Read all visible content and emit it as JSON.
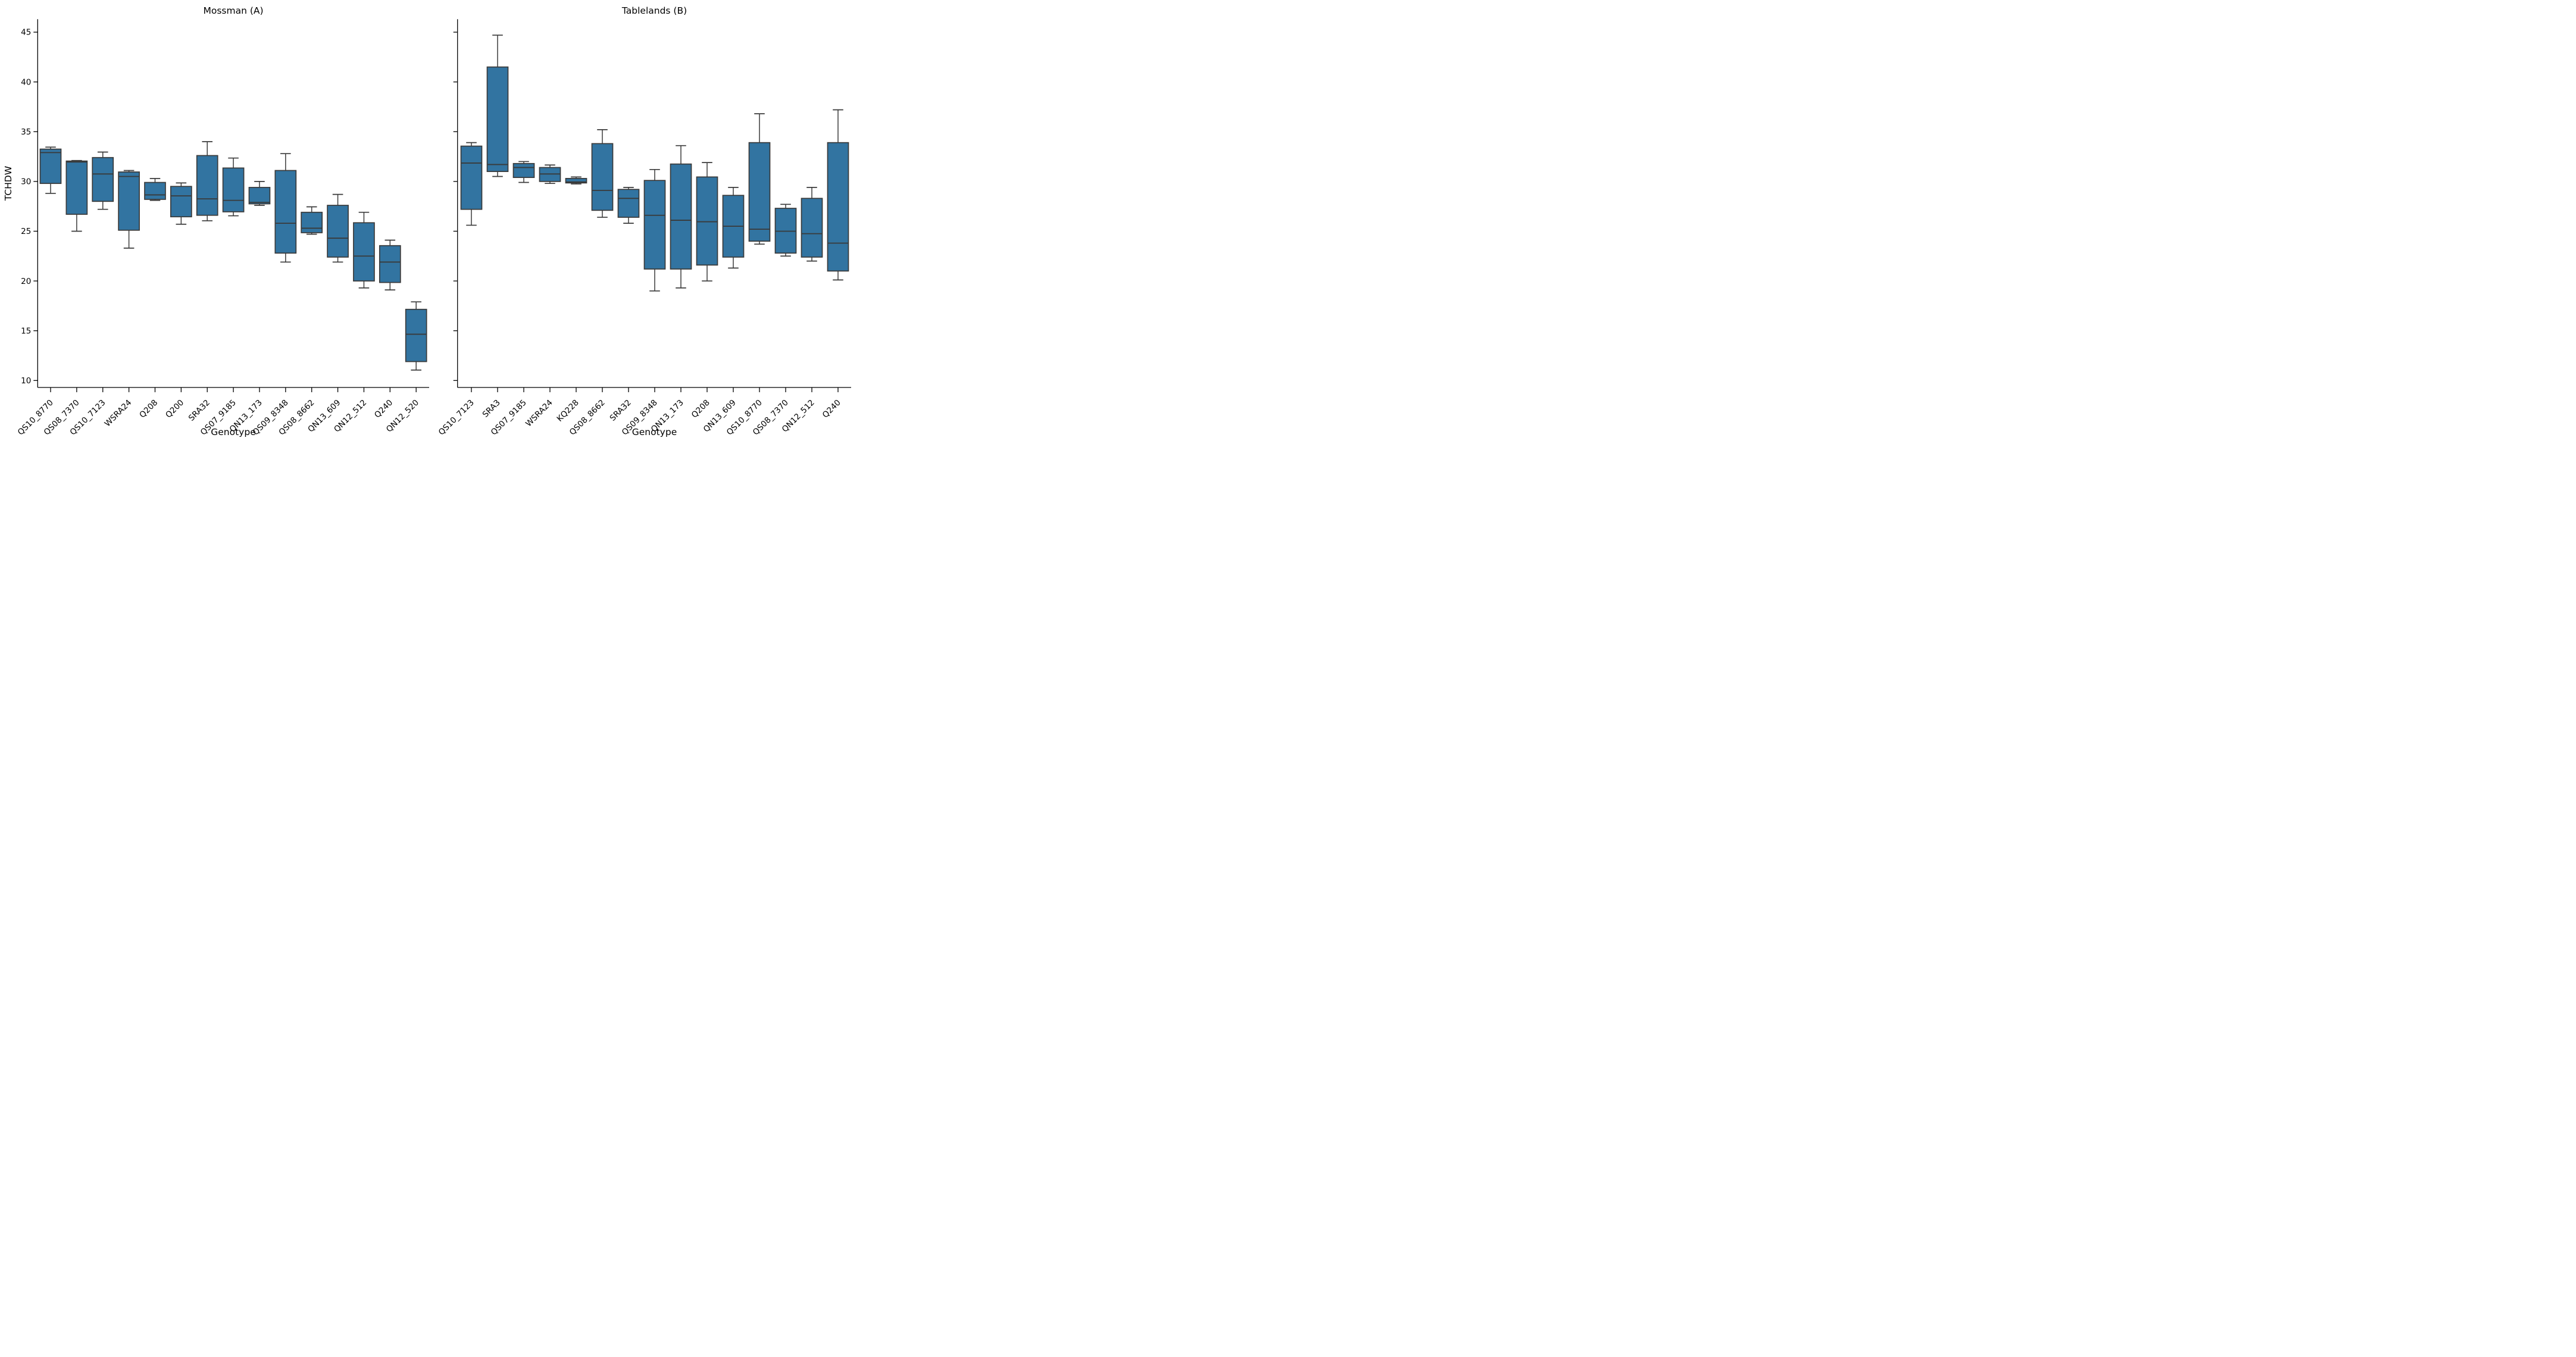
{
  "figure": {
    "background": "#ffffff",
    "box_fill_color": "#3274a1",
    "box_edge_color": "#3a3a3a",
    "axis_color": "#000000",
    "text_color": "#000000"
  },
  "chart_data": [
    {
      "type": "box",
      "title": "Mossman (A)",
      "xlabel": "Genotype",
      "ylabel": "TCHDW",
      "ylim": [
        9.3,
        46.3
      ],
      "yticks": [
        10,
        15,
        20,
        25,
        30,
        35,
        40,
        45
      ],
      "show_ytick_labels": true,
      "legend": "none",
      "grid": false,
      "categories": [
        "QS10_8770",
        "QS08_7370",
        "QS10_7123",
        "WSRA24",
        "Q208",
        "Q200",
        "SRA32",
        "QS07_9185",
        "QN13_173",
        "QS09_8348",
        "QS08_8662",
        "QN13_609",
        "QN12_512",
        "Q240",
        "QN12_520"
      ],
      "boxes": [
        {
          "category": "QS10_8770",
          "whislo": 28.8,
          "q1": 29.8,
          "med": 32.9,
          "q3": 33.25,
          "whishi": 33.45
        },
        {
          "category": "QS08_7370",
          "whislo": 25.0,
          "q1": 26.7,
          "med": 31.95,
          "q3": 32.05,
          "whishi": 32.1
        },
        {
          "category": "QS10_7123",
          "whislo": 27.2,
          "q1": 28.0,
          "med": 30.75,
          "q3": 32.4,
          "whishi": 32.95
        },
        {
          "category": "WSRA24",
          "whislo": 23.3,
          "q1": 25.1,
          "med": 30.5,
          "q3": 30.95,
          "whishi": 31.1
        },
        {
          "category": "Q208",
          "whislo": 28.1,
          "q1": 28.2,
          "med": 28.65,
          "q3": 29.9,
          "whishi": 30.3
        },
        {
          "category": "Q200",
          "whislo": 25.7,
          "q1": 26.45,
          "med": 28.55,
          "q3": 29.5,
          "whishi": 29.85
        },
        {
          "category": "SRA32",
          "whislo": 26.05,
          "q1": 26.6,
          "med": 28.25,
          "q3": 32.6,
          "whishi": 34.0
        },
        {
          "category": "QS07_9185",
          "whislo": 26.55,
          "q1": 26.95,
          "med": 28.1,
          "q3": 31.35,
          "whishi": 32.35
        },
        {
          "category": "QN13_173",
          "whislo": 27.6,
          "q1": 27.75,
          "med": 27.9,
          "q3": 29.4,
          "whishi": 30.0
        },
        {
          "category": "QS09_8348",
          "whislo": 21.9,
          "q1": 22.8,
          "med": 25.8,
          "q3": 31.1,
          "whishi": 32.8
        },
        {
          "category": "QS08_8662",
          "whislo": 24.7,
          "q1": 24.85,
          "med": 25.3,
          "q3": 26.9,
          "whishi": 27.45
        },
        {
          "category": "QN13_609",
          "whislo": 21.9,
          "q1": 22.4,
          "med": 24.3,
          "q3": 27.6,
          "whishi": 28.7
        },
        {
          "category": "QN12_512",
          "whislo": 19.3,
          "q1": 20.0,
          "med": 22.5,
          "q3": 25.85,
          "whishi": 26.9
        },
        {
          "category": "Q240",
          "whislo": 19.1,
          "q1": 19.85,
          "med": 21.9,
          "q3": 23.55,
          "whishi": 24.1
        },
        {
          "category": "QN12_520",
          "whislo": 11.05,
          "q1": 11.9,
          "med": 14.65,
          "q3": 17.15,
          "whishi": 17.9
        }
      ]
    },
    {
      "type": "box",
      "title": "Tablelands (B)",
      "xlabel": "Genotype",
      "ylabel": "",
      "ylim": [
        9.3,
        46.3
      ],
      "yticks": [
        10,
        15,
        20,
        25,
        30,
        35,
        40,
        45
      ],
      "show_ytick_labels": false,
      "legend": "none",
      "grid": false,
      "categories": [
        "QS10_7123",
        "SRA3",
        "QS07_9185",
        "WSRA24",
        "KQ228",
        "QS08_8662",
        "SRA32",
        "QS09_8348",
        "QN13_173",
        "Q208",
        "QN13_609",
        "QS10_8770",
        "QS08_7370",
        "QN12_512",
        "Q240"
      ],
      "boxes": [
        {
          "category": "QS10_7123",
          "whislo": 25.6,
          "q1": 27.2,
          "med": 31.85,
          "q3": 33.55,
          "whishi": 33.9
        },
        {
          "category": "SRA3",
          "whislo": 30.5,
          "q1": 31.0,
          "med": 31.7,
          "q3": 41.5,
          "whishi": 44.7
        },
        {
          "category": "QS07_9185",
          "whislo": 29.9,
          "q1": 30.4,
          "med": 31.4,
          "q3": 31.8,
          "whishi": 32.0
        },
        {
          "category": "WSRA24",
          "whislo": 29.8,
          "q1": 30.0,
          "med": 30.75,
          "q3": 31.4,
          "whishi": 31.65
        },
        {
          "category": "KQ228",
          "whislo": 29.75,
          "q1": 29.85,
          "med": 29.95,
          "q3": 30.3,
          "whishi": 30.45
        },
        {
          "category": "QS08_8662",
          "whislo": 26.4,
          "q1": 27.1,
          "med": 29.1,
          "q3": 33.8,
          "whishi": 35.2
        },
        {
          "category": "SRA32",
          "whislo": 25.8,
          "q1": 26.4,
          "med": 28.3,
          "q3": 29.2,
          "whishi": 29.4
        },
        {
          "category": "QS09_8348",
          "whislo": 19.0,
          "q1": 21.2,
          "med": 26.6,
          "q3": 30.1,
          "whishi": 31.2
        },
        {
          "category": "QN13_173",
          "whislo": 19.3,
          "q1": 21.2,
          "med": 26.1,
          "q3": 31.75,
          "whishi": 33.6
        },
        {
          "category": "Q208",
          "whislo": 20.0,
          "q1": 21.6,
          "med": 25.95,
          "q3": 30.45,
          "whishi": 31.9
        },
        {
          "category": "QN13_609",
          "whislo": 21.3,
          "q1": 22.4,
          "med": 25.5,
          "q3": 28.6,
          "whishi": 29.4
        },
        {
          "category": "QS10_8770",
          "whislo": 23.7,
          "q1": 24.0,
          "med": 25.2,
          "q3": 33.9,
          "whishi": 36.8
        },
        {
          "category": "QS08_7370",
          "whislo": 22.5,
          "q1": 22.8,
          "med": 25.0,
          "q3": 27.3,
          "whishi": 27.7
        },
        {
          "category": "QN12_512",
          "whislo": 22.0,
          "q1": 22.4,
          "med": 24.75,
          "q3": 28.3,
          "whishi": 29.4
        },
        {
          "category": "Q240",
          "whislo": 20.1,
          "q1": 21.0,
          "med": 23.8,
          "q3": 33.9,
          "whishi": 37.2
        }
      ]
    }
  ]
}
